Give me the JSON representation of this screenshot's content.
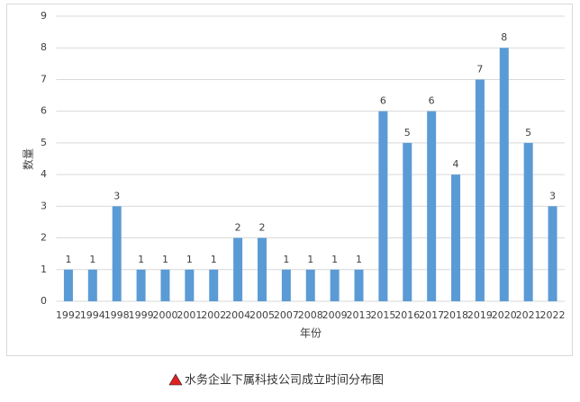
{
  "chart_data": {
    "type": "bar",
    "categories": [
      "1992",
      "1994",
      "1998",
      "1999",
      "2000",
      "2001",
      "2002",
      "2004",
      "2005",
      "2007",
      "2008",
      "2009",
      "2013",
      "2015",
      "2016",
      "2017",
      "2018",
      "2019",
      "2020",
      "2021",
      "2022"
    ],
    "values": [
      1,
      1,
      3,
      1,
      1,
      1,
      1,
      2,
      2,
      1,
      1,
      1,
      1,
      6,
      5,
      6,
      4,
      7,
      8,
      5,
      3
    ],
    "color": "#5b9bd5",
    "ylim": [
      0,
      9
    ],
    "yticks": [
      0,
      1,
      2,
      3,
      4,
      5,
      6,
      7,
      8,
      9
    ],
    "grid": true,
    "xlabel": "年份",
    "ylabel": "数量",
    "caption": "水务企业下属科技公司成立时间分布图"
  }
}
